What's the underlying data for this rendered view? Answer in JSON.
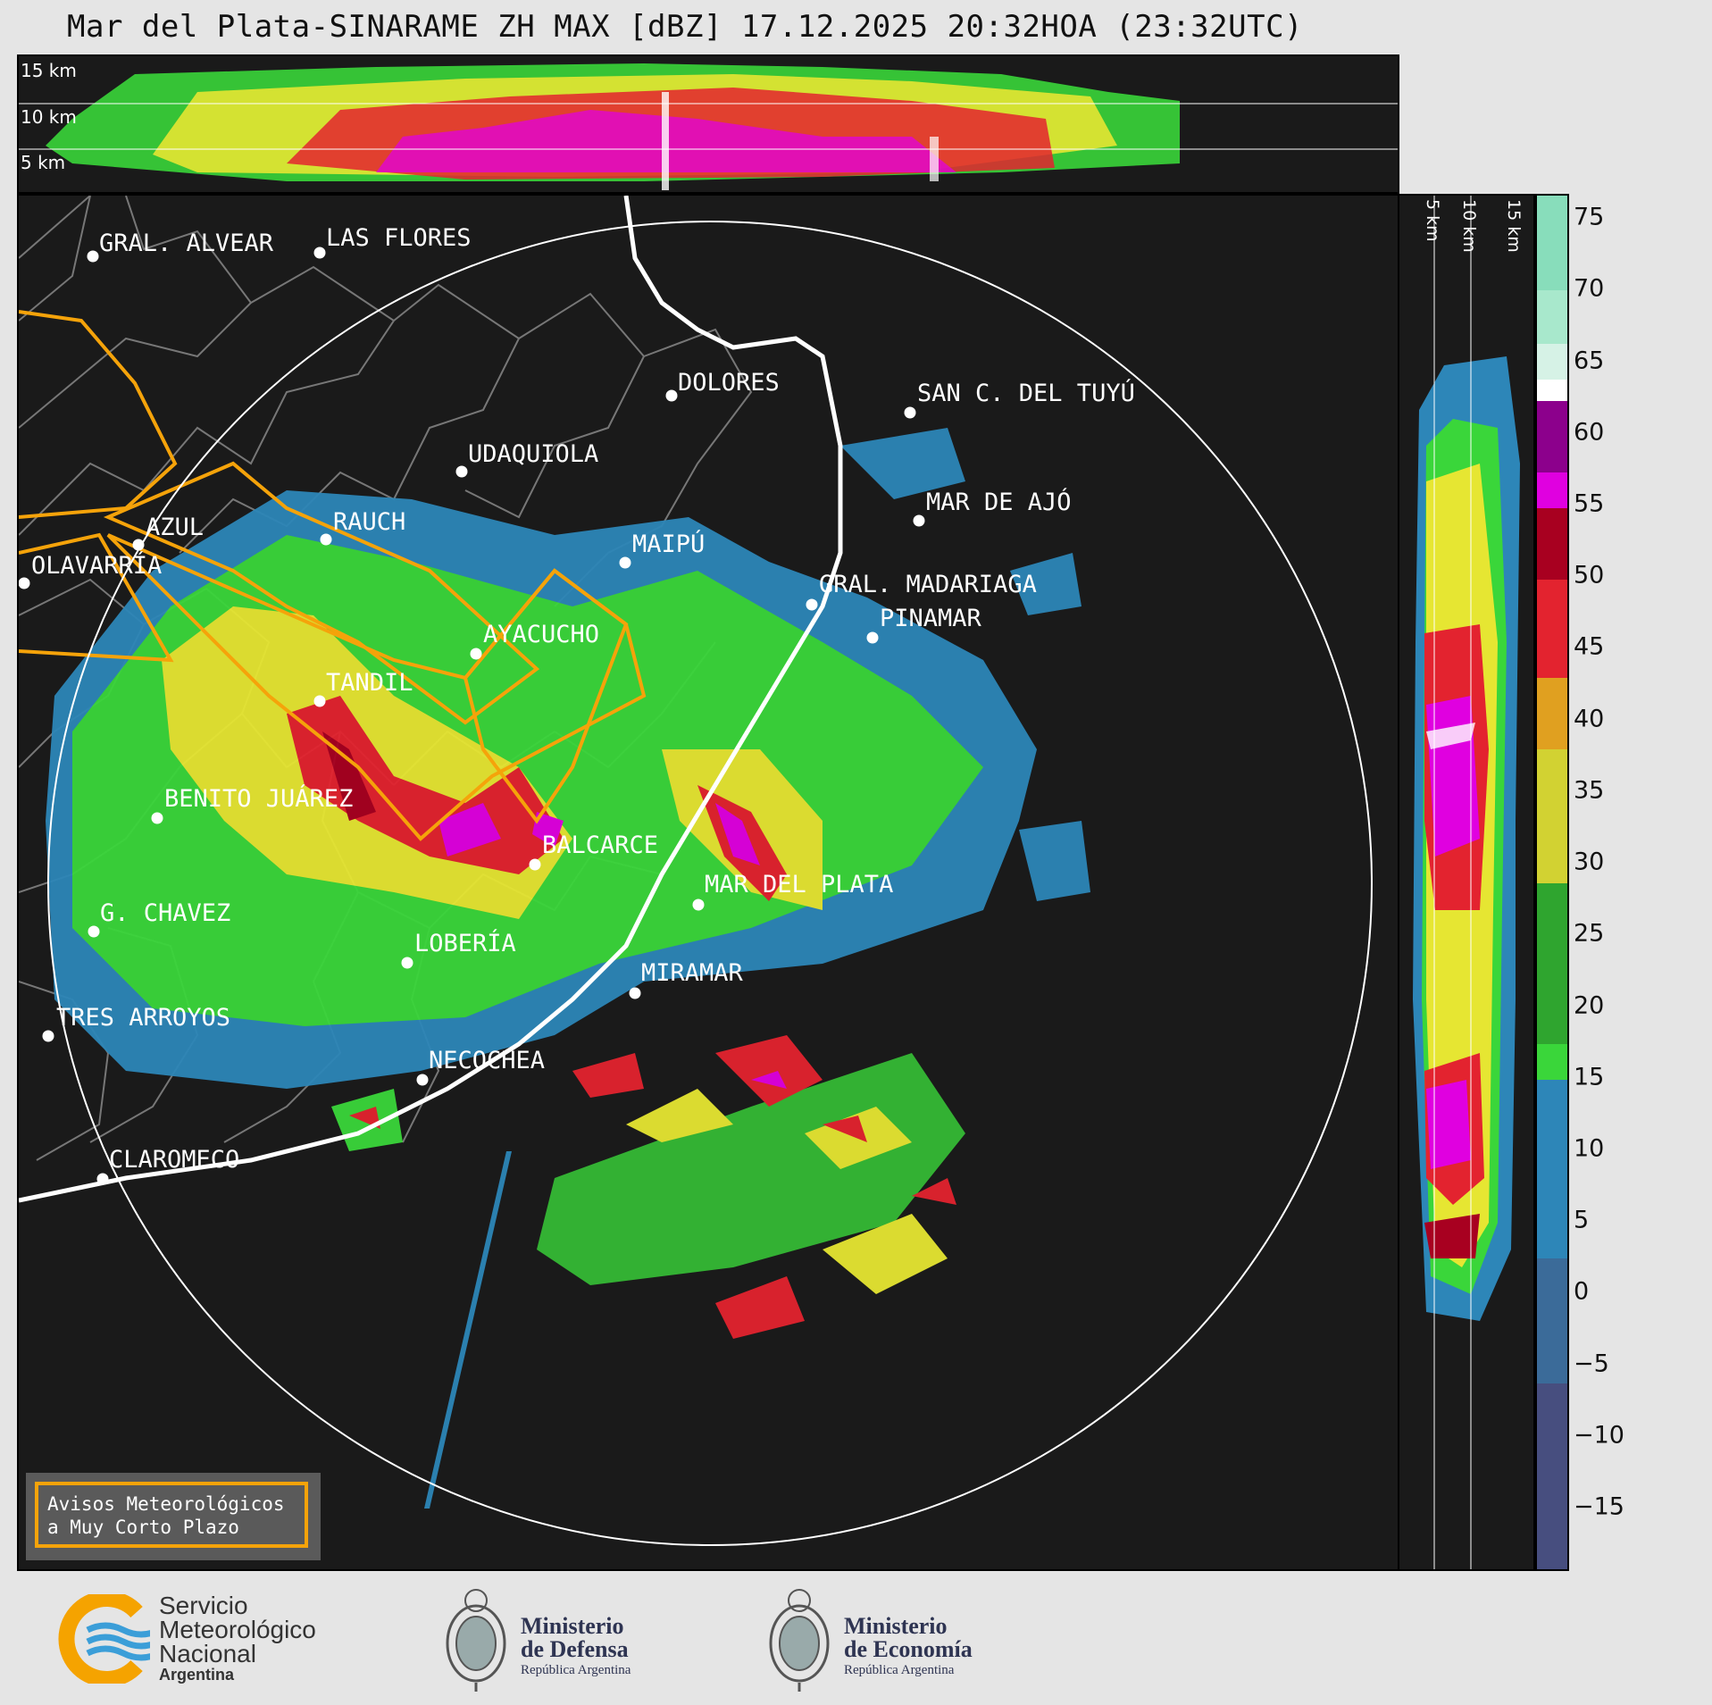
{
  "title": "Mar del Plata-SINARAME ZH MAX [dBZ] 17.12.2025 20:32HOA (23:32UTC)",
  "top_panel": {
    "altitude_labels": [
      "15 km",
      "10 km",
      "5 km"
    ]
  },
  "side_panel": {
    "altitude_labels": [
      "5 km",
      "10 km",
      "15 km"
    ]
  },
  "colorbar": {
    "unit": "dBZ",
    "ticks": [
      "75",
      "70",
      "65",
      "60",
      "55",
      "50",
      "45",
      "40",
      "35",
      "30",
      "25",
      "20",
      "15",
      "10",
      "5",
      "0",
      "−5",
      "−10",
      "−15"
    ],
    "range": [
      -20,
      77
    ],
    "colors": {
      "-20": "#3c3f6e",
      "-15": "#474e7f",
      "-10": "#3f5585",
      "-5": "#3b5e8e",
      "0": "#3b6b99",
      "5": "#3778a6",
      "10": "#2d86b8",
      "15": "#27a2d4",
      "18": "#3ad63a",
      "25": "#2fa52f",
      "30": "#e6e632",
      "40": "#e0a020",
      "45": "#e3232f",
      "50": "#a80020",
      "55": "#e000e0",
      "58": "#8c008c",
      "60": "#ffffff",
      "70": "#88ddbb"
    }
  },
  "map": {
    "cities": [
      {
        "name": "GRAL. ALVEAR"
      },
      {
        "name": "LAS FLORES"
      },
      {
        "name": "DOLORES"
      },
      {
        "name": "SAN C. DEL TUYÚ"
      },
      {
        "name": "UDAQUIOLA"
      },
      {
        "name": "MAR DE AJÓ"
      },
      {
        "name": "AZUL"
      },
      {
        "name": "RAUCH"
      },
      {
        "name": "MAIPÚ"
      },
      {
        "name": "OLAVARRÍA"
      },
      {
        "name": "GRAL. MADARIAGA"
      },
      {
        "name": "PINAMAR"
      },
      {
        "name": "AYACUCHO"
      },
      {
        "name": "TANDIL"
      },
      {
        "name": "BENITO JUÁREZ"
      },
      {
        "name": "BALCARCE"
      },
      {
        "name": "MAR DEL PLATA"
      },
      {
        "name": "G. CHAVEZ"
      },
      {
        "name": "LOBERÍA"
      },
      {
        "name": "MIRAMAR"
      },
      {
        "name": "TRES ARROYOS"
      },
      {
        "name": "NECOCHEA"
      },
      {
        "name": "CLAROMECO"
      }
    ],
    "warning_box": {
      "line1": "Avisos Meteorológicos",
      "line2": "a Muy Corto Plazo",
      "border_color": "#f5a30a"
    }
  },
  "logos": {
    "smn": {
      "line1": "Servicio",
      "line2": "Meteorológico",
      "line3": "Nacional",
      "line4": "Argentina"
    },
    "defensa": {
      "line1": "Ministerio",
      "line2": "de Defensa",
      "line3": "República Argentina"
    },
    "economia": {
      "line1": "Ministerio",
      "line2": "de Economía",
      "line3": "República Argentina"
    }
  }
}
